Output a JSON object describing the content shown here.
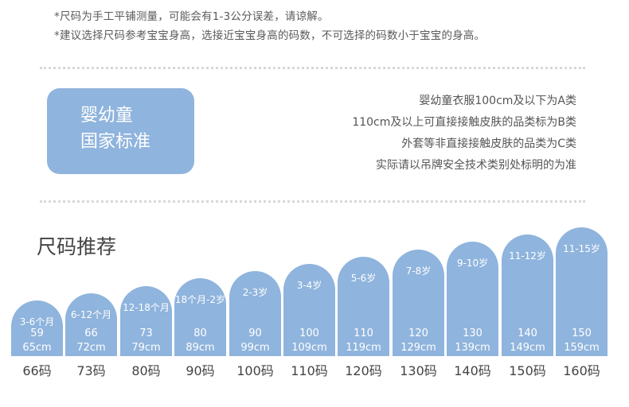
{
  "notes": [
    "*尺码为手工平铺测量，可能会有1-3公分误差，请谅解。",
    "*建议选择尺码参考宝宝身高，选接近宝宝身高的码数，不可选择的码数小于宝宝的身高。"
  ],
  "standard_badge": {
    "line1": "婴幼童",
    "line2": "国家标准"
  },
  "standard_rules": [
    "婴幼童衣服100cm及以下为A类",
    "110cm及以上可直接接触皮肤的品类标为B类",
    "外套等非直接接触皮肤的品类为C类",
    "实际请以吊牌安全技术类别处标明的为准"
  ],
  "section_title": "尺码推荐",
  "colors": {
    "accent": "#8fb4dd",
    "dots": "#d8d8d8"
  },
  "sizes": [
    {
      "age": "3-6个月",
      "height": "59",
      "length": "65cm",
      "size": "66码"
    },
    {
      "age": "6-12个月",
      "height": "66",
      "length": "72cm",
      "size": "73码"
    },
    {
      "age": "12-18个月",
      "height": "73",
      "length": "79cm",
      "size": "80码"
    },
    {
      "age": "18个月-2岁",
      "height": "80",
      "length": "89cm",
      "size": "90码"
    },
    {
      "age": "2-3岁",
      "height": "90",
      "length": "99cm",
      "size": "100码"
    },
    {
      "age": "3-4岁",
      "height": "100",
      "length": "109cm",
      "size": "110码"
    },
    {
      "age": "5-6岁",
      "height": "110",
      "length": "119cm",
      "size": "120码"
    },
    {
      "age": "7-8岁",
      "height": "120",
      "length": "129cm",
      "size": "130码"
    },
    {
      "age": "9-10岁",
      "height": "130",
      "length": "139cm",
      "size": "140码"
    },
    {
      "age": "11-12岁",
      "height": "140",
      "length": "149cm",
      "size": "150码"
    },
    {
      "age": "11-15岁",
      "height": "150",
      "length": "159cm",
      "size": "160码"
    }
  ]
}
